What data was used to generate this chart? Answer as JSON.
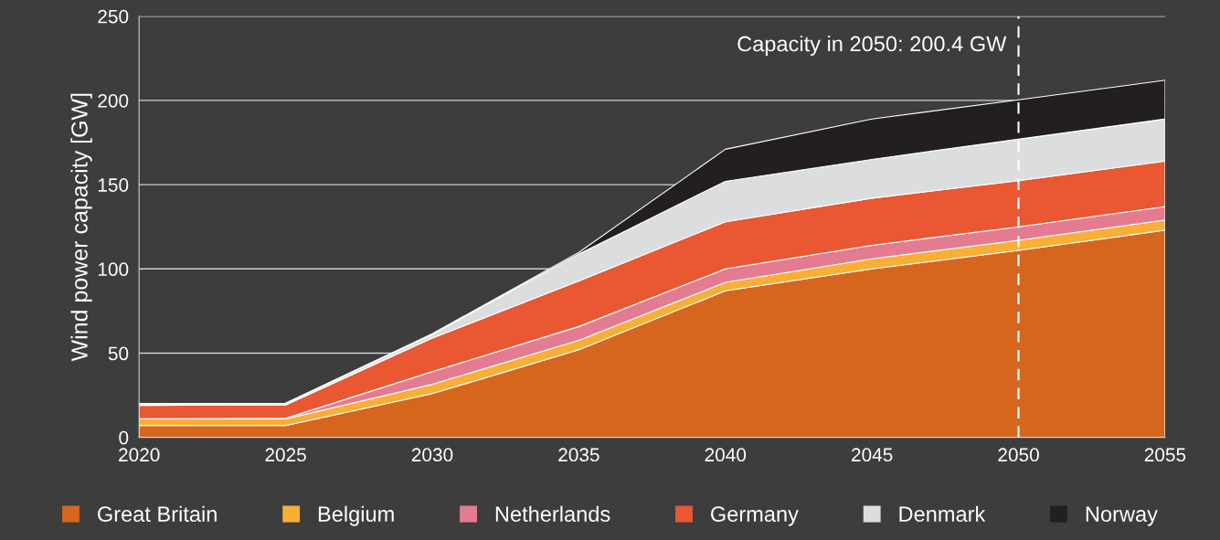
{
  "chart_data": {
    "type": "area",
    "stacked": true,
    "ylabel": "Wind power capacity [GW]",
    "x": [
      2020,
      2025,
      2030,
      2035,
      2040,
      2045,
      2050,
      2055
    ],
    "xlim": [
      2020,
      2055
    ],
    "xticks": [
      2020,
      2025,
      2030,
      2035,
      2040,
      2045,
      2050,
      2055
    ],
    "ylim": [
      0,
      250
    ],
    "yticks": [
      0,
      50,
      100,
      150,
      200,
      250
    ],
    "grid": "y",
    "legend": "bottom",
    "series": [
      {
        "name": "Great Britain",
        "color": "#d6661e",
        "values": [
          7,
          7,
          26,
          52,
          87,
          100,
          111,
          123
        ]
      },
      {
        "name": "Belgium",
        "color": "#f9ae35",
        "values": [
          4,
          4,
          5.5,
          5.6,
          5,
          6,
          6,
          6
        ]
      },
      {
        "name": "Netherlands",
        "color": "#e57b90",
        "values": [
          0,
          0.3,
          7.5,
          8.2,
          8,
          8,
          8,
          8
        ]
      },
      {
        "name": "Germany",
        "color": "#e95733",
        "values": [
          8,
          8,
          20,
          27,
          28,
          28,
          27.4,
          27
        ]
      },
      {
        "name": "Denmark",
        "color": "#dcddde",
        "values": [
          1,
          1,
          2,
          16,
          24,
          23,
          24.6,
          25
        ]
      },
      {
        "name": "Norway",
        "color": "#231f20",
        "values": [
          0,
          0,
          0.5,
          1,
          19,
          24,
          23.4,
          23
        ]
      }
    ],
    "ref_lines": [
      {
        "axis": "x",
        "value": 2050,
        "label": "Capacity in 2050: 200.4 GW",
        "color": "#ffffff",
        "line_style": "dashed"
      }
    ]
  }
}
